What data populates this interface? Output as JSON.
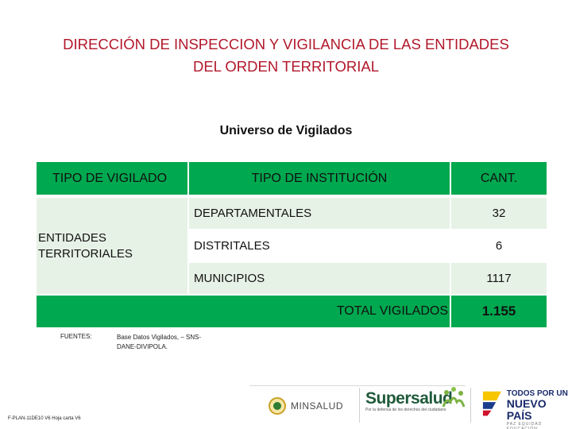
{
  "title": {
    "line1": "DIRECCIÓN DE INSPECCION Y VIGILANCIA DE LAS ENTIDADES",
    "line2": "DEL ORDEN TERRITORIAL"
  },
  "subtitle": "Universo de Vigilados",
  "table": {
    "headers": {
      "tipo_vigilado": "TIPO DE VIGILADO",
      "tipo_institucion": "TIPO DE INSTITUCIÓN",
      "cantidad": "CANT."
    },
    "group_label_line1": "ENTIDADES",
    "group_label_line2": "TERRITORIALES",
    "rows": [
      {
        "institucion": "DEPARTAMENTALES",
        "cantidad": "32"
      },
      {
        "institucion": "DISTRITALES",
        "cantidad": "6"
      },
      {
        "institucion": "MUNICIPIOS",
        "cantidad": "1117"
      }
    ],
    "total_label": "TOTAL VIGILADOS",
    "total_value": "1.155"
  },
  "fuentes": {
    "label": "FUENTES:",
    "text": "Base Datos Vigilados, – SNS-DANE-DIVIPOLA."
  },
  "doc_code": "F-PLAN-11DE10 V6 Hoja carta V6",
  "footer": {
    "minsalud": "MINSALUD",
    "supersalud": "Supersalud",
    "supersalud_tagline": "Por la defensa de los derechos del ciudadano",
    "pais_line1": "TODOS POR UN",
    "pais_line2": "NUEVO PAÍS",
    "pais_line3": "PAZ EQUIDAD EDUCACIÓN"
  },
  "colors": {
    "title": "#b2182b",
    "table_green": "#00a84f",
    "table_light": "#e7f2e6"
  }
}
